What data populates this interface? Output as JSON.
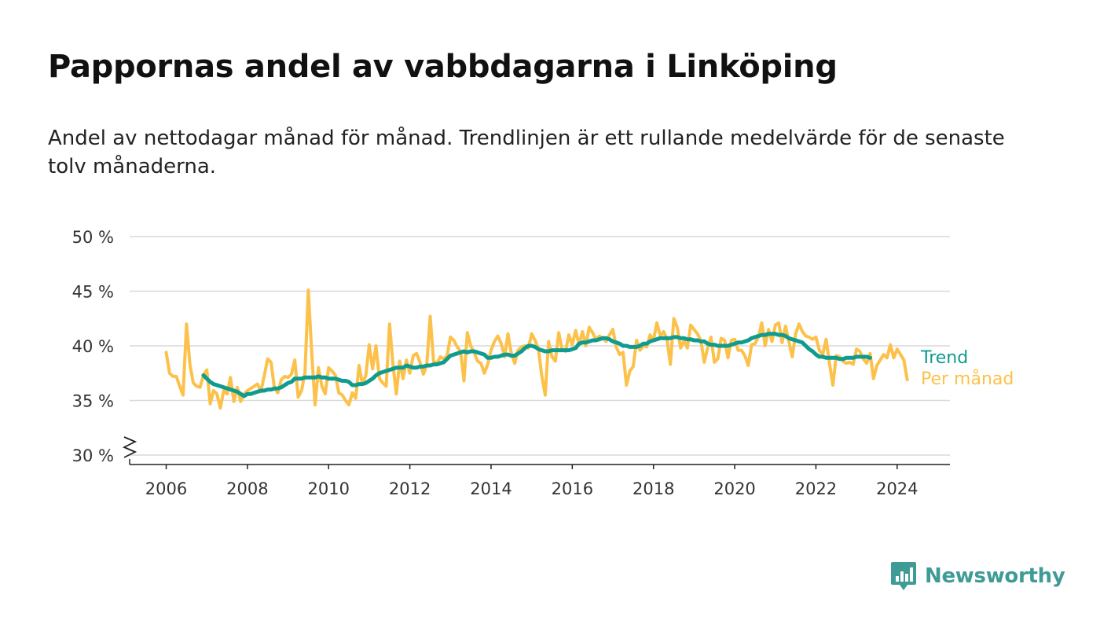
{
  "title": "Pappornas andel av vabbdagarna i Linköping",
  "subtitle": "Andel av nettodagar månad för månad. Trendlinjen är ett rullande medelvärde för de senaste tolv månaderna.",
  "brand": {
    "name": "Newsworthy",
    "color": "#3f9b95"
  },
  "chart_data": {
    "type": "line",
    "ylim": [
      30,
      50
    ],
    "yticks": [
      30,
      35,
      40,
      45,
      50
    ],
    "ytick_labels": [
      "30 %",
      "35 %",
      "40 %",
      "45 %",
      "50 %"
    ],
    "xticks": [
      2006,
      2008,
      2010,
      2012,
      2014,
      2016,
      2018,
      2020,
      2022,
      2024
    ],
    "xtick_labels": [
      "2006",
      "2008",
      "2010",
      "2012",
      "2014",
      "2016",
      "2018",
      "2020",
      "2022",
      "2024"
    ],
    "xlim": [
      2005.1,
      2025.3
    ],
    "grid": true,
    "legend": "end-of-line labels, right",
    "series": [
      {
        "name": "Per månad",
        "color": "#fcc14a",
        "x_start": 2006.0,
        "x_step_months": 1,
        "values": [
          39.4,
          37.5,
          37.2,
          37.2,
          36.3,
          35.5,
          42.0,
          38.3,
          36.6,
          36.3,
          36.2,
          37.3,
          37.8,
          34.7,
          35.9,
          35.6,
          34.3,
          35.9,
          35.6,
          37.1,
          34.9,
          36.2,
          34.9,
          35.6,
          35.9,
          36.1,
          36.3,
          36.5,
          35.8,
          37.3,
          38.8,
          38.5,
          36.1,
          35.7,
          36.9,
          37.2,
          37.1,
          37.4,
          38.7,
          35.3,
          35.9,
          37.5,
          45.1,
          39.4,
          34.6,
          38.0,
          36.3,
          35.6,
          38.0,
          37.7,
          37.3,
          35.7,
          35.5,
          35.0,
          34.6,
          35.7,
          35.2,
          38.2,
          36.5,
          37.3,
          40.1,
          37.9,
          40.0,
          37.0,
          36.6,
          36.3,
          42.0,
          38.3,
          35.6,
          38.6,
          37.0,
          38.7,
          37.5,
          39.1,
          39.3,
          38.5,
          37.4,
          38.2,
          42.7,
          38.6,
          38.4,
          39.0,
          38.8,
          39.1,
          40.8,
          40.5,
          39.9,
          39.5,
          36.8,
          41.2,
          40.0,
          39.4,
          38.6,
          38.4,
          37.5,
          38.3,
          39.6,
          40.4,
          40.9,
          40.2,
          39.0,
          41.1,
          39.3,
          38.4,
          39.6,
          39.9,
          40.0,
          39.8,
          41.1,
          40.5,
          39.7,
          37.2,
          35.5,
          40.4,
          39.0,
          38.6,
          41.2,
          39.7,
          39.5,
          41.0,
          40.1,
          41.4,
          40.1,
          41.3,
          40.0,
          41.7,
          41.2,
          40.6,
          40.9,
          40.7,
          40.4,
          41.0,
          41.5,
          39.9,
          39.2,
          39.4,
          36.4,
          37.7,
          38.1,
          40.5,
          39.6,
          40.0,
          39.9,
          41.0,
          40.5,
          42.1,
          40.9,
          41.3,
          40.6,
          38.3,
          42.5,
          41.7,
          39.8,
          40.5,
          39.8,
          41.9,
          41.5,
          41.1,
          40.5,
          38.5,
          39.8,
          40.8,
          38.5,
          38.8,
          40.7,
          40.5,
          38.9,
          40.5,
          40.6,
          39.6,
          39.6,
          39.1,
          38.2,
          40.1,
          40.2,
          40.8,
          42.1,
          40.0,
          41.5,
          40.4,
          41.9,
          42.1,
          40.3,
          41.8,
          40.4,
          39.0,
          41.1,
          42.0,
          41.3,
          40.9,
          40.8,
          40.6,
          40.8,
          39.6,
          39.2,
          40.6,
          38.4,
          36.4,
          39.1,
          39.0,
          38.6,
          38.4,
          38.5,
          38.3,
          39.7,
          39.5,
          38.8,
          38.4,
          39.3,
          37.0,
          38.2,
          38.7,
          39.2,
          38.9,
          40.1,
          38.9,
          39.7,
          39.2,
          38.7,
          36.9
        ]
      },
      {
        "name": "Trend",
        "color": "#0f9b8e",
        "x_start": 2006.917,
        "x_step_months": 1,
        "values": [
          37.3,
          37.0,
          36.7,
          36.5,
          36.4,
          36.3,
          36.2,
          36.1,
          36.0,
          35.9,
          35.8,
          35.6,
          35.4,
          35.6,
          35.6,
          35.7,
          35.8,
          35.9,
          35.9,
          36.0,
          36.0,
          36.1,
          36.1,
          36.2,
          36.4,
          36.6,
          36.7,
          37.0,
          37.0,
          37.0,
          37.1,
          37.1,
          37.1,
          37.1,
          37.2,
          37.1,
          37.1,
          37.0,
          37.0,
          37.0,
          36.9,
          36.8,
          36.8,
          36.7,
          36.4,
          36.4,
          36.5,
          36.5,
          36.6,
          36.8,
          37.0,
          37.3,
          37.5,
          37.6,
          37.7,
          37.8,
          37.9,
          38.0,
          38.0,
          38.0,
          38.2,
          38.1,
          38.0,
          38.0,
          38.1,
          38.1,
          38.2,
          38.2,
          38.3,
          38.3,
          38.4,
          38.5,
          38.8,
          39.1,
          39.2,
          39.3,
          39.4,
          39.5,
          39.4,
          39.5,
          39.5,
          39.4,
          39.3,
          39.2,
          38.9,
          38.9,
          39.0,
          39.0,
          39.1,
          39.2,
          39.2,
          39.1,
          39.1,
          39.3,
          39.5,
          39.8,
          40.0,
          40.0,
          39.9,
          39.7,
          39.6,
          39.5,
          39.5,
          39.6,
          39.6,
          39.6,
          39.6,
          39.6,
          39.6,
          39.7,
          39.8,
          40.2,
          40.3,
          40.3,
          40.4,
          40.5,
          40.5,
          40.6,
          40.7,
          40.7,
          40.6,
          40.4,
          40.3,
          40.2,
          40.0,
          40.0,
          39.9,
          39.9,
          39.9,
          40.0,
          40.2,
          40.2,
          40.4,
          40.5,
          40.6,
          40.7,
          40.7,
          40.7,
          40.7,
          40.8,
          40.8,
          40.7,
          40.7,
          40.6,
          40.6,
          40.5,
          40.5,
          40.4,
          40.4,
          40.2,
          40.1,
          40.1,
          40.0,
          40.0,
          40.0,
          40.0,
          40.1,
          40.2,
          40.3,
          40.3,
          40.4,
          40.5,
          40.7,
          40.8,
          40.9,
          41.0,
          41.0,
          41.1,
          41.1,
          41.1,
          41.0,
          41.0,
          40.9,
          40.7,
          40.6,
          40.5,
          40.4,
          40.3,
          40.0,
          39.7,
          39.5,
          39.2,
          39.0,
          39.0,
          38.9,
          38.9,
          38.9,
          38.9,
          38.8,
          38.8,
          38.9,
          38.9,
          38.9,
          39.0,
          39.0,
          39.0,
          39.0,
          38.9
        ]
      }
    ]
  }
}
